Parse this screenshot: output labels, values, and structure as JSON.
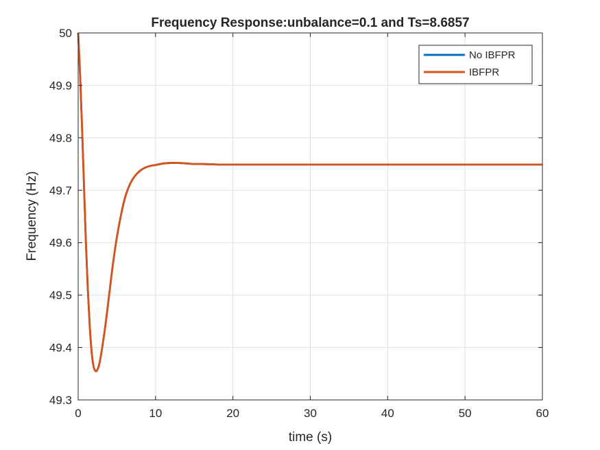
{
  "chart_data": {
    "type": "line",
    "title": "Frequency Response:unbalance=0.1 and Ts=8.6857",
    "xlabel": "time (s)",
    "ylabel": "Frequency (Hz)",
    "xlim": [
      0,
      60
    ],
    "ylim": [
      49.3,
      50
    ],
    "xticks": [
      0,
      10,
      20,
      30,
      40,
      50,
      60
    ],
    "yticks": [
      49.3,
      49.4,
      49.5,
      49.6,
      49.7,
      49.8,
      49.9,
      50
    ],
    "grid": true,
    "legend": {
      "position": "top-right",
      "entries": [
        "No IBFPR",
        "IBFPR"
      ]
    },
    "series": [
      {
        "name": "No IBFPR",
        "color": "#0072BD",
        "x": [
          0,
          0.25,
          0.5,
          0.75,
          1,
          1.25,
          1.5,
          1.75,
          2,
          2.25,
          2.5,
          2.75,
          3,
          3.5,
          4,
          4.5,
          5,
          5.5,
          6,
          6.5,
          7,
          7.5,
          8,
          8.5,
          9,
          9.5,
          10,
          11,
          12,
          13,
          14,
          15,
          16,
          18,
          20,
          25,
          30,
          40,
          50,
          60
        ],
        "y": [
          50,
          49.92,
          49.82,
          49.71,
          49.6,
          49.51,
          49.44,
          49.39,
          49.363,
          49.355,
          49.358,
          49.37,
          49.39,
          49.44,
          49.5,
          49.56,
          49.61,
          49.65,
          49.683,
          49.705,
          49.72,
          49.73,
          49.737,
          49.742,
          49.745,
          49.747,
          49.748,
          49.751,
          49.752,
          49.752,
          49.751,
          49.75,
          49.75,
          49.749,
          49.749,
          49.749,
          49.749,
          49.749,
          49.749,
          49.749
        ]
      },
      {
        "name": "IBFPR",
        "color": "#D95319",
        "x": [
          0,
          0.25,
          0.5,
          0.75,
          1,
          1.25,
          1.5,
          1.75,
          2,
          2.25,
          2.5,
          2.75,
          3,
          3.5,
          4,
          4.5,
          5,
          5.5,
          6,
          6.5,
          7,
          7.5,
          8,
          8.5,
          9,
          9.5,
          10,
          11,
          12,
          13,
          14,
          15,
          16,
          18,
          20,
          25,
          30,
          40,
          50,
          60
        ],
        "y": [
          50,
          49.92,
          49.82,
          49.71,
          49.6,
          49.51,
          49.44,
          49.39,
          49.363,
          49.355,
          49.358,
          49.37,
          49.39,
          49.44,
          49.5,
          49.56,
          49.61,
          49.65,
          49.683,
          49.705,
          49.72,
          49.73,
          49.737,
          49.742,
          49.745,
          49.747,
          49.748,
          49.751,
          49.752,
          49.752,
          49.751,
          49.75,
          49.75,
          49.749,
          49.749,
          49.749,
          49.749,
          49.749,
          49.749,
          49.749
        ]
      }
    ]
  }
}
